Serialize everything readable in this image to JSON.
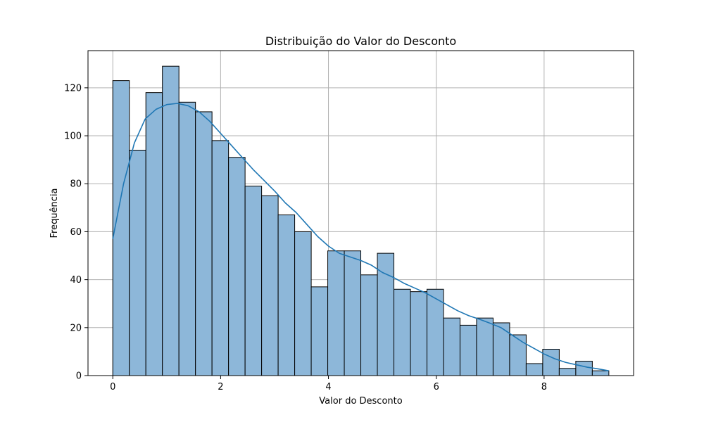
{
  "chart_data": {
    "type": "bar",
    "title": "Distribuição do Valor do Desconto",
    "xlabel": "Valor do Desconto",
    "ylabel": "Frequência",
    "xlim": [
      -0.46,
      9.66
    ],
    "ylim": [
      0,
      135.5
    ],
    "grid": true,
    "bin_start": 0.0,
    "bin_width": 0.3067,
    "values": [
      123,
      94,
      118,
      129,
      114,
      110,
      98,
      91,
      79,
      75,
      67,
      60,
      37,
      52,
      52,
      42,
      51,
      36,
      35,
      36,
      24,
      21,
      24,
      22,
      17,
      5,
      11,
      3,
      6,
      2
    ],
    "xticks": [
      0,
      2,
      4,
      6,
      8
    ],
    "xtick_labels": [
      "0",
      "2",
      "4",
      "6",
      "8"
    ],
    "yticks": [
      0,
      20,
      40,
      60,
      80,
      100,
      120
    ],
    "ytick_labels": [
      "0",
      "20",
      "40",
      "60",
      "80",
      "100",
      "120"
    ],
    "kde": {
      "x": [
        0,
        0.2,
        0.4,
        0.6,
        0.8,
        1.0,
        1.2,
        1.4,
        1.6,
        1.8,
        2.0,
        2.2,
        2.4,
        2.6,
        2.8,
        3.0,
        3.2,
        3.4,
        3.6,
        3.8,
        4.0,
        4.2,
        4.4,
        4.6,
        4.8,
        5.0,
        5.2,
        5.4,
        5.6,
        5.8,
        6.0,
        6.2,
        6.4,
        6.6,
        6.8,
        7.0,
        7.2,
        7.4,
        7.6,
        7.8,
        8.0,
        8.2,
        8.4,
        8.6,
        8.8,
        9.0,
        9.2
      ],
      "y": [
        57,
        80,
        97,
        107,
        111,
        113,
        113.5,
        112.5,
        110,
        106,
        101,
        96,
        91,
        86,
        81.5,
        77,
        72,
        68,
        63,
        58,
        54,
        51,
        49.5,
        48,
        46,
        43,
        41,
        38.5,
        36.5,
        34.5,
        32,
        29.5,
        27,
        25,
        23.5,
        21.8,
        20,
        17,
        14,
        11.5,
        9,
        7,
        5.5,
        4.5,
        3.5,
        2.8,
        2
      ]
    },
    "bar_color": "#8db7d9",
    "bar_edge_color": "#000000",
    "line_color": "#1f77b4",
    "grid_color": "#b0b0b0"
  }
}
